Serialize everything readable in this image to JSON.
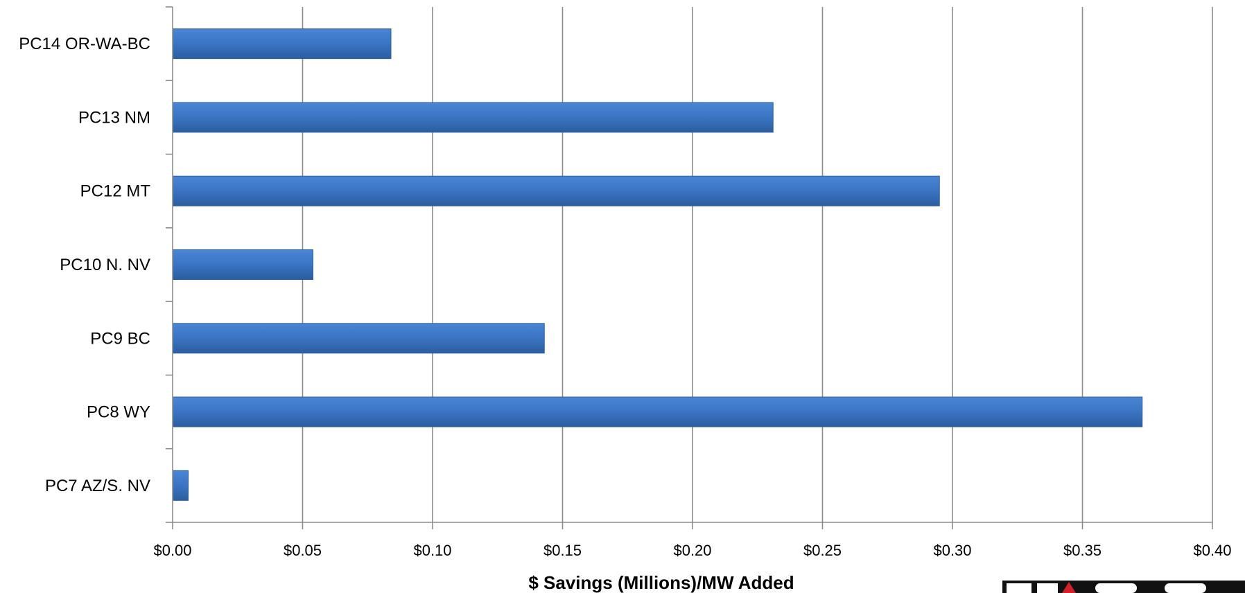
{
  "chart_data": {
    "type": "bar",
    "orientation": "horizontal",
    "categories": [
      "PC14 OR-WA-BC",
      "PC13 NM",
      "PC12 MT",
      "PC10 N. NV",
      "PC9 BC",
      "PC8 WY",
      "PC7 AZ/S. NV"
    ],
    "values": [
      0.084,
      0.231,
      0.295,
      0.054,
      0.143,
      0.373,
      0.006
    ],
    "xlabel": "$ Savings (Millions)/MW Added",
    "ylabel": "",
    "xlim": [
      0,
      0.4
    ],
    "x_ticks": [
      0,
      0.05,
      0.1,
      0.15,
      0.2,
      0.25,
      0.3,
      0.35,
      0.4
    ],
    "x_tick_labels": [
      "$0.00",
      "$0.05",
      "$0.10",
      "$0.15",
      "$0.20",
      "$0.25",
      "$0.30",
      "$0.35",
      "$0.40"
    ],
    "grid": "vertical",
    "bar_color": "#3a74c2"
  }
}
